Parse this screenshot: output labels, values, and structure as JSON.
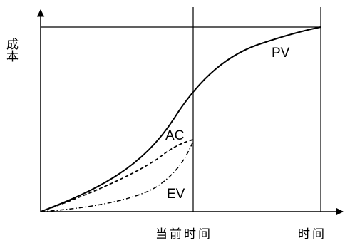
{
  "diagram": {
    "y_axis_label": "成本",
    "x_axis_label_now": "当前时间",
    "x_axis_label_end": "时间",
    "curves": {
      "pv": "PV",
      "ac": "AC",
      "ev": "EV"
    }
  }
}
